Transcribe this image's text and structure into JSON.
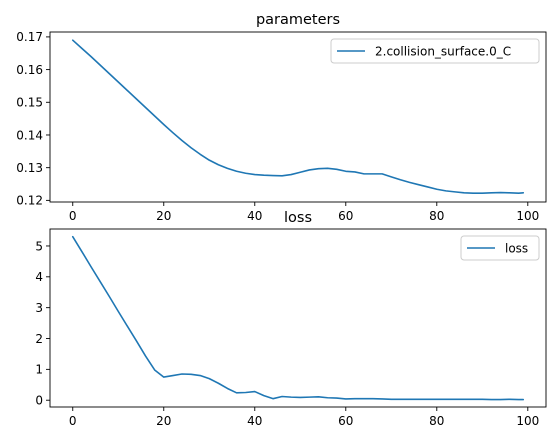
{
  "chart_data": [
    {
      "type": "line",
      "title": "parameters",
      "xlabel": "",
      "ylabel": "",
      "xlim": [
        -5,
        104
      ],
      "ylim": [
        0.1195,
        0.1715
      ],
      "xticks": [
        0,
        20,
        40,
        60,
        80,
        100
      ],
      "yticks": [
        0.12,
        0.13,
        0.14,
        0.15,
        0.16,
        0.17
      ],
      "ytick_labels": [
        "0.12",
        "0.13",
        "0.14",
        "0.15",
        "0.16",
        "0.17"
      ],
      "legend_position": "upper right",
      "grid": false,
      "series": [
        {
          "name": "2.collision_surface.0_C",
          "color": "#1f77b4",
          "x": [
            0,
            2,
            4,
            6,
            8,
            10,
            12,
            14,
            16,
            18,
            20,
            22,
            24,
            26,
            28,
            30,
            32,
            34,
            36,
            38,
            40,
            42,
            44,
            46,
            48,
            50,
            52,
            54,
            56,
            58,
            60,
            62,
            64,
            66,
            68,
            70,
            72,
            74,
            76,
            78,
            80,
            82,
            84,
            86,
            88,
            90,
            92,
            94,
            96,
            98,
            99
          ],
          "values": [
            0.169,
            0.1665,
            0.164,
            0.1614,
            0.1588,
            0.1562,
            0.1536,
            0.151,
            0.1484,
            0.1458,
            0.1432,
            0.1407,
            0.1383,
            0.1361,
            0.1341,
            0.1323,
            0.1309,
            0.1298,
            0.1289,
            0.1283,
            0.1279,
            0.1277,
            0.1276,
            0.1275,
            0.1279,
            0.1286,
            0.1293,
            0.1297,
            0.1298,
            0.1295,
            0.1289,
            0.1287,
            0.1281,
            0.1281,
            0.1281,
            0.1272,
            0.1263,
            0.1255,
            0.1248,
            0.1241,
            0.1234,
            0.1229,
            0.1226,
            0.1223,
            0.1222,
            0.1222,
            0.1223,
            0.1224,
            0.1223,
            0.1222,
            0.1223
          ]
        }
      ]
    },
    {
      "type": "line",
      "title": "loss",
      "xlabel": "",
      "ylabel": "",
      "xlim": [
        -5,
        104
      ],
      "ylim": [
        -0.22,
        5.55
      ],
      "xticks": [
        0,
        20,
        40,
        60,
        80,
        100
      ],
      "yticks": [
        0,
        1,
        2,
        3,
        4,
        5
      ],
      "ytick_labels": [
        "0",
        "1",
        "2",
        "3",
        "4",
        "5"
      ],
      "legend_position": "upper right",
      "grid": false,
      "series": [
        {
          "name": "loss",
          "color": "#1f77b4",
          "x": [
            0,
            2,
            4,
            6,
            8,
            10,
            12,
            14,
            16,
            18,
            20,
            22,
            24,
            26,
            28,
            30,
            32,
            34,
            36,
            38,
            40,
            42,
            44,
            46,
            48,
            50,
            52,
            54,
            56,
            58,
            60,
            62,
            64,
            66,
            68,
            70,
            72,
            74,
            76,
            78,
            80,
            82,
            84,
            86,
            88,
            90,
            92,
            94,
            96,
            98,
            99
          ],
          "values": [
            5.3,
            4.82,
            4.33,
            3.85,
            3.37,
            2.88,
            2.4,
            1.92,
            1.43,
            0.98,
            0.75,
            0.8,
            0.85,
            0.84,
            0.8,
            0.7,
            0.55,
            0.38,
            0.24,
            0.25,
            0.28,
            0.15,
            0.05,
            0.12,
            0.1,
            0.09,
            0.1,
            0.11,
            0.08,
            0.07,
            0.04,
            0.05,
            0.05,
            0.05,
            0.04,
            0.03,
            0.03,
            0.03,
            0.03,
            0.03,
            0.03,
            0.03,
            0.03,
            0.03,
            0.03,
            0.03,
            0.02,
            0.02,
            0.03,
            0.02,
            0.02
          ]
        }
      ]
    }
  ]
}
